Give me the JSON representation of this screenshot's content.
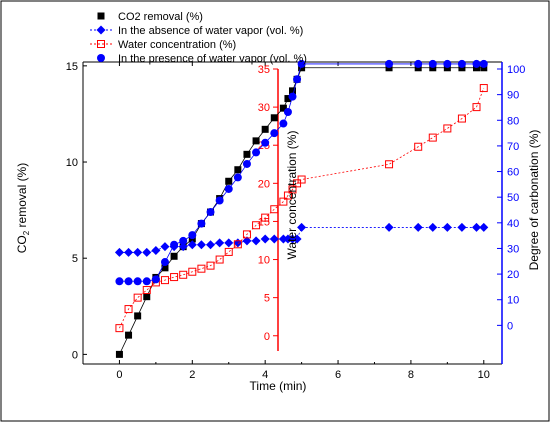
{
  "chart_data": {
    "type": "scatter",
    "title": "",
    "xlabel": "Time (min)",
    "xlim": [
      -1,
      10.5
    ],
    "xticks": [
      "0",
      "2",
      "4",
      "6",
      "8",
      "10"
    ],
    "axes": {
      "left": {
        "label_main": "CO",
        "label_sub": "2",
        "label_rest": " removal (%)",
        "ylim": [
          -0.5,
          15.2
        ],
        "ticks": [
          "0",
          "5",
          "10",
          "15"
        ],
        "color": "#000000"
      },
      "middle": {
        "label": "Water concentration (%)",
        "ylim": [
          -2,
          35
        ],
        "ticks": [
          "0",
          "5",
          "10",
          "15",
          "20",
          "25",
          "30",
          "35"
        ],
        "color": "#ff0000"
      },
      "right": {
        "label": "Degree of carbonation (%)",
        "ylim": [
          -10,
          100
        ],
        "ticks": [
          "0",
          "10",
          "20",
          "30",
          "40",
          "50",
          "60",
          "70",
          "80",
          "90",
          "100"
        ],
        "color": "#0000ff"
      }
    },
    "legend_position": "top-left",
    "series": [
      {
        "name": "CO2 removal (%)",
        "axis": "left",
        "marker": "square-filled",
        "color": "#000000",
        "x": [
          0,
          0.25,
          0.5,
          0.75,
          1,
          1.25,
          1.5,
          1.75,
          2,
          2.25,
          2.5,
          2.75,
          3,
          3.25,
          3.5,
          3.75,
          4,
          4.25,
          4.5,
          4.625,
          4.75,
          4.875,
          5,
          7.4,
          8.2,
          8.6,
          9,
          9.4,
          9.8,
          10
        ],
        "y": [
          0,
          1,
          2,
          3,
          4,
          4.5,
          5.1,
          5.6,
          6,
          6.8,
          7.4,
          8.1,
          9,
          9.6,
          10.4,
          11.1,
          11.7,
          12.3,
          12.8,
          13.3,
          13.7,
          14.3,
          14.9,
          14.9,
          14.9,
          14.9,
          14.9,
          14.9,
          14.9,
          14.9
        ]
      },
      {
        "name": "In the absence of water vapor (vol. %)",
        "axis": "left",
        "marker": "diamond-filled",
        "line": "dotted",
        "color": "#0000ff",
        "x": [
          0,
          0.25,
          0.5,
          0.75,
          1,
          1.25,
          1.5,
          1.75,
          2,
          2.25,
          2.5,
          2.75,
          3,
          3.25,
          3.5,
          3.75,
          4,
          4.25,
          4.5,
          4.625,
          4.75,
          4.875,
          5,
          7.4,
          8.2,
          8.6,
          9,
          9.4,
          9.8,
          10
        ],
        "y": [
          5.3,
          5.3,
          5.3,
          5.3,
          5.4,
          5.6,
          5.6,
          5.6,
          5.7,
          5.7,
          5.7,
          5.8,
          5.8,
          5.8,
          5.9,
          5.9,
          6,
          6,
          6,
          6,
          6,
          6,
          6.6,
          6.6,
          6.6,
          6.6,
          6.6,
          6.6,
          6.6,
          6.6
        ]
      },
      {
        "name": "Water concentration (%)",
        "axis": "middle",
        "marker": "square-open",
        "line": "dotted",
        "color": "#ff0000",
        "x": [
          0,
          0.25,
          0.5,
          0.75,
          1,
          1.25,
          1.5,
          1.75,
          2,
          2.25,
          2.5,
          2.75,
          3,
          3.25,
          3.5,
          3.75,
          4,
          4.25,
          4.5,
          4.625,
          4.75,
          4.875,
          5,
          7.4,
          8.2,
          8.6,
          9,
          9.4,
          9.8,
          10
        ],
        "y": [
          1,
          3.5,
          5,
          6,
          7,
          7.3,
          7.7,
          8,
          8.4,
          8.8,
          9.2,
          10,
          11,
          12,
          13.3,
          14.5,
          15.5,
          16.6,
          17.6,
          18.4,
          19.2,
          20,
          20.5,
          22.5,
          24.8,
          26,
          27.2,
          28.5,
          30,
          32.5
        ]
      },
      {
        "name": "In the presence of water vapor (vol. %)",
        "axis": "left",
        "marker": "circle-filled",
        "color": "#0000ff",
        "x": [
          0,
          0.25,
          0.5,
          0.75,
          1,
          1.25,
          1.5,
          1.75,
          2,
          2.25,
          2.5,
          2.75,
          3,
          3.25,
          3.5,
          3.75,
          4,
          4.25,
          4.5,
          4.625,
          4.75,
          4.875,
          5,
          7.4,
          8.2,
          8.6,
          9,
          9.4,
          9.8,
          10
        ],
        "y": [
          3.8,
          3.8,
          3.8,
          3.8,
          3.9,
          4.8,
          5.7,
          5.9,
          6.2,
          6.8,
          7.4,
          8,
          8.6,
          9.2,
          9.9,
          10.5,
          11,
          11.5,
          12,
          12.6,
          13.4,
          14.3,
          15.1,
          15.1,
          15.1,
          15.1,
          15.1,
          15.1,
          15.1,
          15.1
        ]
      }
    ]
  }
}
